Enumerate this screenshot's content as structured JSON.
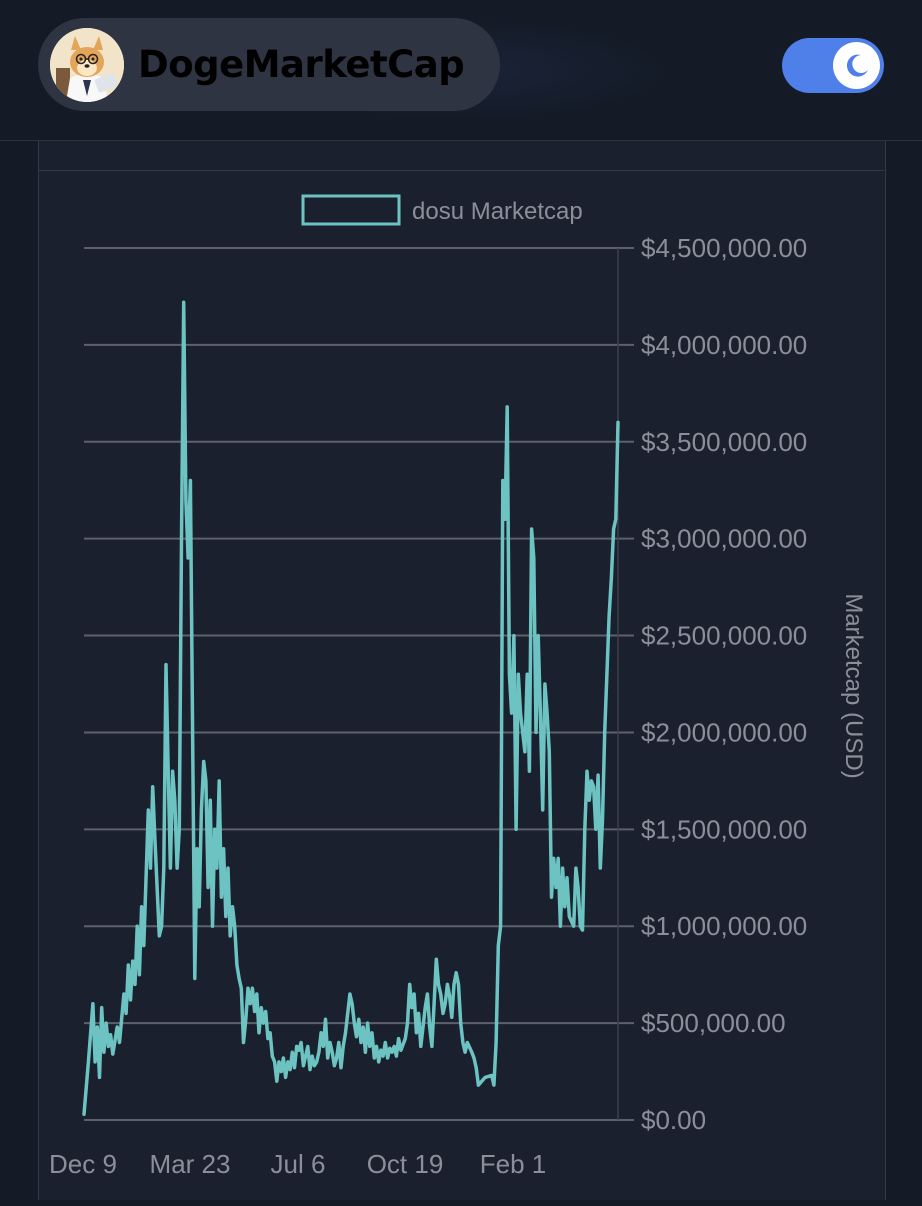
{
  "header": {
    "brand_name": "DogeMarketCap",
    "theme_toggle_state": "dark",
    "accent_color": "#4f7fe8"
  },
  "chart_data": {
    "type": "line",
    "legend": {
      "label": "dosu Marketcap",
      "position": "top"
    },
    "ylabel": "Marketcap (USD)",
    "ylim": [
      0,
      4500000
    ],
    "y_ticks": [
      "$0.00",
      "$500,000.00",
      "$1,000,000.00",
      "$1,500,000.00",
      "$2,000,000.00",
      "$2,500,000.00",
      "$3,000,000.00",
      "$3,500,000.00",
      "$4,000,000.00",
      "$4,500,000.00"
    ],
    "x_ticks": [
      "Dec 9",
      "Mar 23",
      "Jul 6",
      "Oct 19",
      "Feb 1"
    ],
    "line_color": "#6cc3c2",
    "grid": true,
    "series": [
      {
        "name": "dosu Marketcap",
        "points": [
          [
            0,
            30000
          ],
          [
            2,
            300000
          ],
          [
            4,
            600000
          ],
          [
            5,
            300000
          ],
          [
            6,
            480000
          ],
          [
            7,
            220000
          ],
          [
            8,
            580000
          ],
          [
            9,
            350000
          ],
          [
            10,
            500000
          ],
          [
            11,
            380000
          ],
          [
            12,
            440000
          ],
          [
            13,
            340000
          ],
          [
            15,
            480000
          ],
          [
            16,
            400000
          ],
          [
            18,
            650000
          ],
          [
            19,
            550000
          ],
          [
            20,
            800000
          ],
          [
            21,
            620000
          ],
          [
            22,
            820000
          ],
          [
            23,
            700000
          ],
          [
            24,
            1000000
          ],
          [
            25,
            750000
          ],
          [
            26,
            1100000
          ],
          [
            27,
            900000
          ],
          [
            29,
            1600000
          ],
          [
            30,
            1300000
          ],
          [
            31,
            1720000
          ],
          [
            32,
            1450000
          ],
          [
            33,
            1200000
          ],
          [
            34,
            950000
          ],
          [
            35,
            1000000
          ],
          [
            36,
            1300000
          ],
          [
            37,
            2350000
          ],
          [
            38,
            1800000
          ],
          [
            39,
            1300000
          ],
          [
            40,
            1800000
          ],
          [
            41,
            1650000
          ],
          [
            42,
            1300000
          ],
          [
            43,
            1500000
          ],
          [
            44,
            3000000
          ],
          [
            45,
            4220000
          ],
          [
            46,
            3200000
          ],
          [
            47,
            2900000
          ],
          [
            48,
            3300000
          ],
          [
            49,
            2000000
          ],
          [
            50,
            730000
          ],
          [
            51,
            1400000
          ],
          [
            52,
            1100000
          ],
          [
            53,
            1600000
          ],
          [
            54,
            1850000
          ],
          [
            55,
            1750000
          ],
          [
            56,
            1200000
          ],
          [
            57,
            1650000
          ],
          [
            58,
            1000000
          ],
          [
            59,
            1500000
          ],
          [
            60,
            1300000
          ],
          [
            61,
            1750000
          ],
          [
            62,
            1150000
          ],
          [
            63,
            1400000
          ],
          [
            64,
            1050000
          ],
          [
            65,
            1300000
          ],
          [
            66,
            950000
          ],
          [
            67,
            1100000
          ],
          [
            68,
            1000000
          ],
          [
            69,
            800000
          ],
          [
            70,
            730000
          ],
          [
            71,
            680000
          ],
          [
            72,
            400000
          ],
          [
            73,
            520000
          ],
          [
            74,
            680000
          ],
          [
            75,
            600000
          ],
          [
            76,
            680000
          ],
          [
            77,
            560000
          ],
          [
            78,
            650000
          ],
          [
            79,
            450000
          ],
          [
            80,
            580000
          ],
          [
            81,
            500000
          ],
          [
            82,
            560000
          ],
          [
            83,
            420000
          ],
          [
            84,
            450000
          ],
          [
            85,
            330000
          ],
          [
            86,
            300000
          ],
          [
            87,
            200000
          ],
          [
            88,
            300000
          ],
          [
            89,
            250000
          ],
          [
            90,
            320000
          ],
          [
            91,
            220000
          ],
          [
            92,
            300000
          ],
          [
            93,
            260000
          ],
          [
            94,
            350000
          ],
          [
            95,
            270000
          ],
          [
            96,
            380000
          ],
          [
            97,
            360000
          ],
          [
            98,
            400000
          ],
          [
            99,
            280000
          ],
          [
            100,
            330000
          ],
          [
            101,
            380000
          ],
          [
            102,
            260000
          ],
          [
            103,
            330000
          ],
          [
            104,
            280000
          ],
          [
            105,
            300000
          ],
          [
            106,
            350000
          ],
          [
            107,
            450000
          ],
          [
            108,
            380000
          ],
          [
            109,
            520000
          ],
          [
            110,
            320000
          ],
          [
            111,
            400000
          ],
          [
            112,
            350000
          ],
          [
            113,
            280000
          ],
          [
            114,
            320000
          ],
          [
            115,
            400000
          ],
          [
            116,
            270000
          ],
          [
            117,
            380000
          ],
          [
            118,
            450000
          ],
          [
            119,
            550000
          ],
          [
            120,
            650000
          ],
          [
            121,
            600000
          ],
          [
            122,
            500000
          ],
          [
            123,
            430000
          ],
          [
            124,
            520000
          ],
          [
            125,
            400000
          ],
          [
            126,
            480000
          ],
          [
            127,
            350000
          ],
          [
            128,
            500000
          ],
          [
            129,
            380000
          ],
          [
            130,
            450000
          ],
          [
            131,
            320000
          ],
          [
            132,
            380000
          ],
          [
            133,
            300000
          ],
          [
            134,
            360000
          ],
          [
            135,
            330000
          ],
          [
            136,
            400000
          ],
          [
            137,
            320000
          ],
          [
            138,
            370000
          ],
          [
            139,
            350000
          ],
          [
            140,
            380000
          ],
          [
            141,
            330000
          ],
          [
            142,
            420000
          ],
          [
            143,
            360000
          ],
          [
            144,
            390000
          ],
          [
            145,
            420000
          ],
          [
            146,
            500000
          ],
          [
            147,
            700000
          ],
          [
            148,
            580000
          ],
          [
            149,
            650000
          ],
          [
            150,
            450000
          ],
          [
            151,
            550000
          ],
          [
            152,
            380000
          ],
          [
            153,
            480000
          ],
          [
            154,
            580000
          ],
          [
            155,
            650000
          ],
          [
            156,
            480000
          ],
          [
            157,
            380000
          ],
          [
            158,
            600000
          ],
          [
            159,
            830000
          ],
          [
            160,
            700000
          ],
          [
            161,
            650000
          ],
          [
            162,
            550000
          ],
          [
            163,
            600000
          ],
          [
            164,
            700000
          ],
          [
            165,
            640000
          ],
          [
            166,
            530000
          ],
          [
            167,
            700000
          ],
          [
            168,
            760000
          ],
          [
            169,
            700000
          ],
          [
            170,
            500000
          ],
          [
            171,
            400000
          ],
          [
            172,
            350000
          ],
          [
            173,
            400000
          ],
          [
            175,
            350000
          ],
          [
            176,
            320000
          ],
          [
            177,
            270000
          ],
          [
            178,
            180000
          ],
          [
            181,
            220000
          ],
          [
            184,
            230000
          ],
          [
            185,
            180000
          ],
          [
            186,
            400000
          ],
          [
            187,
            900000
          ],
          [
            188,
            1000000
          ],
          [
            189,
            3300000
          ],
          [
            190,
            3100000
          ],
          [
            191,
            3680000
          ],
          [
            192,
            2300000
          ],
          [
            193,
            2100000
          ],
          [
            194,
            2500000
          ],
          [
            195,
            1500000
          ],
          [
            196,
            2300000
          ],
          [
            197,
            2100000
          ],
          [
            198,
            2000000
          ],
          [
            199,
            1900000
          ],
          [
            200,
            2300000
          ],
          [
            201,
            1800000
          ],
          [
            202,
            3050000
          ],
          [
            203,
            2900000
          ],
          [
            204,
            2000000
          ],
          [
            205,
            2500000
          ],
          [
            206,
            2100000
          ],
          [
            207,
            1600000
          ],
          [
            208,
            2250000
          ],
          [
            209,
            2100000
          ],
          [
            210,
            1900000
          ],
          [
            211,
            1150000
          ],
          [
            212,
            1350000
          ],
          [
            213,
            1200000
          ],
          [
            214,
            1350000
          ],
          [
            215,
            1000000
          ],
          [
            216,
            1300000
          ],
          [
            217,
            1100000
          ],
          [
            218,
            1250000
          ],
          [
            219,
            1050000
          ],
          [
            221,
            1000000
          ],
          [
            222,
            1300000
          ],
          [
            223,
            1200000
          ],
          [
            224,
            1000000
          ],
          [
            225,
            980000
          ],
          [
            226,
            1500000
          ],
          [
            227,
            1800000
          ],
          [
            228,
            1650000
          ],
          [
            229,
            1750000
          ],
          [
            230,
            1720000
          ],
          [
            231,
            1500000
          ],
          [
            232,
            1780000
          ],
          [
            233,
            1300000
          ],
          [
            234,
            1550000
          ],
          [
            235,
            2000000
          ],
          [
            236,
            2300000
          ],
          [
            237,
            2600000
          ],
          [
            238,
            2800000
          ],
          [
            239,
            3050000
          ],
          [
            240,
            3100000
          ],
          [
            241,
            3600000
          ]
        ]
      }
    ]
  }
}
